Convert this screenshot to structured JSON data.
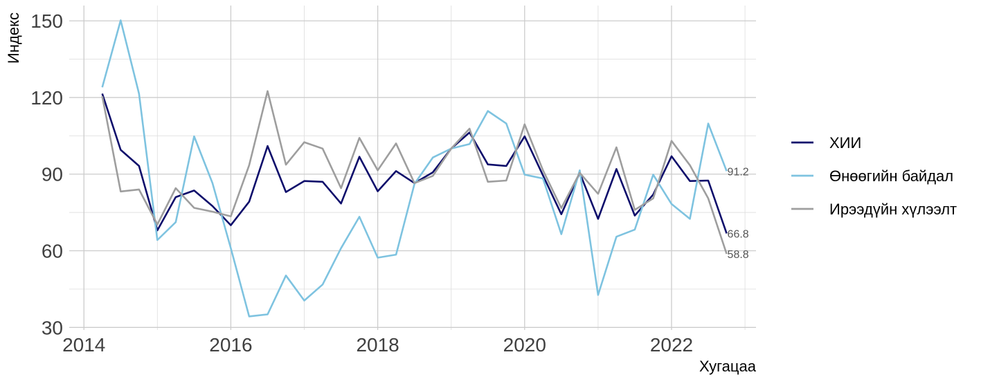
{
  "chart_data": {
    "type": "line",
    "xlabel": "Хугацаа",
    "ylabel": "Индекс",
    "xlim": [
      2013.8,
      2023.15
    ],
    "ylim": [
      29,
      156
    ],
    "x_ticks": [
      2014,
      2016,
      2018,
      2020,
      2022
    ],
    "y_ticks": [
      30,
      60,
      90,
      120,
      150
    ],
    "grid": true,
    "legend_position": "right",
    "x": [
      2014.25,
      2014.5,
      2014.75,
      2015.0,
      2015.25,
      2015.5,
      2015.75,
      2016.0,
      2016.25,
      2016.5,
      2016.75,
      2017.0,
      2017.25,
      2017.5,
      2017.75,
      2018.0,
      2018.25,
      2018.5,
      2018.75,
      2019.0,
      2019.25,
      2019.5,
      2019.75,
      2020.0,
      2020.25,
      2020.5,
      2020.75,
      2021.0,
      2021.25,
      2021.5,
      2021.75,
      2022.0,
      2022.25,
      2022.5,
      2022.75
    ],
    "series": [
      {
        "name": "ХИИ",
        "color": "#0d0d6b",
        "values": [
          121.5,
          99.5,
          93.2,
          68.0,
          81.0,
          83.6,
          77.5,
          70.0,
          79.2,
          101.0,
          83.0,
          87.3,
          87.0,
          78.5,
          96.8,
          83.3,
          91.2,
          86.5,
          90.7,
          100.0,
          106.3,
          93.8,
          93.2,
          104.8,
          89.5,
          74.3,
          90.5,
          72.5,
          92.0,
          73.8,
          82.0,
          97.0,
          87.3,
          87.5,
          66.8
        ],
        "end_label": "66.8"
      },
      {
        "name": "Өнөөгийн байдал",
        "color": "#7ec3e0",
        "values": [
          124.0,
          150.2,
          121.5,
          64.2,
          71.2,
          104.8,
          86.5,
          61.0,
          34.3,
          35.1,
          50.3,
          40.5,
          46.8,
          61.0,
          73.3,
          57.3,
          58.5,
          86.2,
          96.5,
          100.0,
          101.8,
          114.7,
          109.8,
          89.8,
          88.3,
          66.5,
          91.5,
          42.7,
          65.5,
          68.3,
          89.8,
          78.3,
          72.5,
          109.8,
          91.2
        ],
        "end_label": "91.2"
      },
      {
        "name": "Ирээдүйн хүлээлт",
        "color": "#9e9e9e",
        "values": [
          120.5,
          83.2,
          84.0,
          70.3,
          84.5,
          76.8,
          75.3,
          73.5,
          93.5,
          122.5,
          93.7,
          102.5,
          100.0,
          84.5,
          104.2,
          91.5,
          102.0,
          86.5,
          89.3,
          100.0,
          107.8,
          87.0,
          87.5,
          109.5,
          91.5,
          76.7,
          90.5,
          82.3,
          100.5,
          76.0,
          80.5,
          103.0,
          93.5,
          80.5,
          58.8
        ],
        "end_label": "58.8"
      }
    ]
  }
}
